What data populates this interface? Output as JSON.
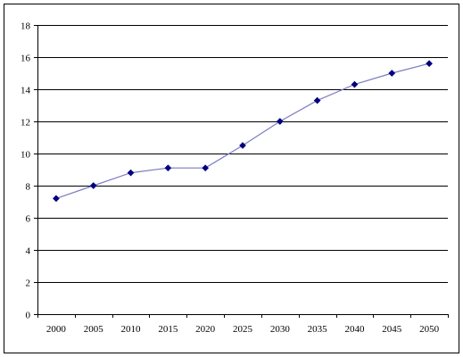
{
  "chart_data": {
    "type": "line",
    "title": "",
    "xlabel": "",
    "ylabel": "",
    "x": [
      "2000",
      "2005",
      "2010",
      "2015",
      "2020",
      "2025",
      "2030",
      "2035",
      "2040",
      "2045",
      "2050"
    ],
    "series": [
      {
        "values": [
          7.2,
          8.0,
          8.8,
          9.1,
          9.1,
          10.5,
          12.0,
          13.3,
          14.3,
          15.0,
          15.6
        ],
        "line_color": "#7b7bc4",
        "marker_color": "#000080",
        "marker": "diamond"
      }
    ],
    "ylim": [
      0,
      18
    ],
    "yticks": [
      "0",
      "2",
      "4",
      "6",
      "8",
      "10",
      "12",
      "14",
      "16",
      "18"
    ],
    "grid": "horizontal",
    "legend": "none"
  }
}
